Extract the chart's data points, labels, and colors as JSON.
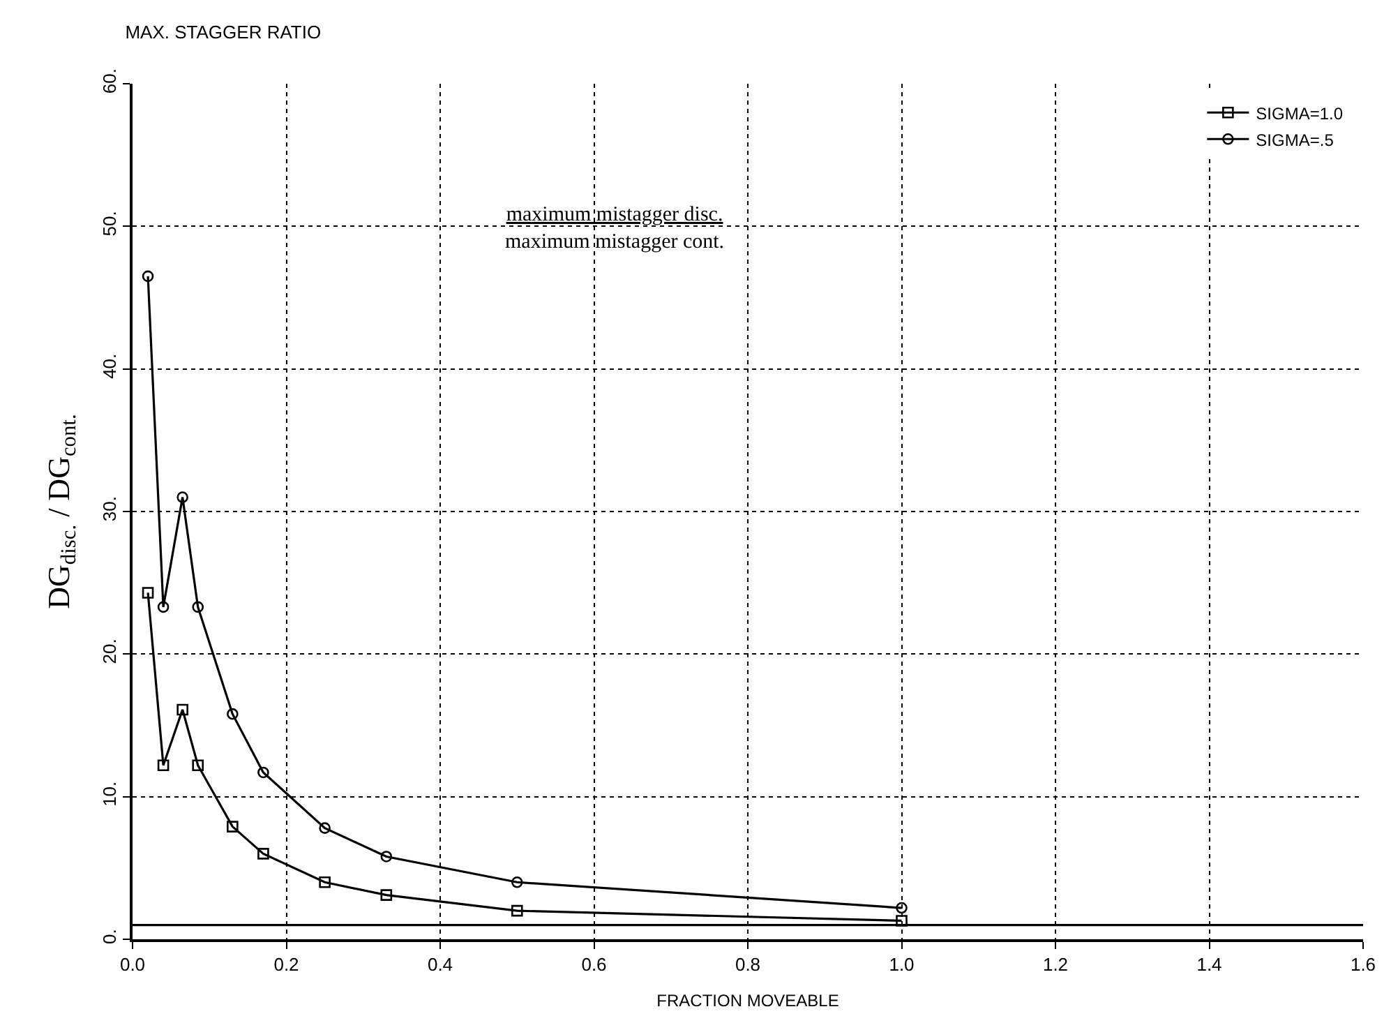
{
  "chart_data": {
    "type": "line",
    "title": "MAX. STAGGER RATIO",
    "xlabel": "FRACTION MOVEABLE",
    "ylabel": "DG$_{disc.}$ / DG$_{cont.}$",
    "annotations": [
      "maximum mistagger disc.\nmaximum mistagger cont."
    ],
    "series": [
      {
        "name": "SIGMA=1.0",
        "color": "#000000",
        "marker": "square",
        "x": [
          0.02,
          0.04,
          0.065,
          0.085,
          0.13,
          0.17,
          0.25,
          0.33,
          0.5,
          1.0
        ],
        "values": [
          24.3,
          12.2,
          16.1,
          12.2,
          7.9,
          6.0,
          4.0,
          3.1,
          2.0,
          1.3
        ]
      },
      {
        "name": "SIGMA=.5",
        "color": "#000000",
        "marker": "circle",
        "x": [
          0.02,
          0.04,
          0.065,
          0.085,
          0.13,
          0.17,
          0.25,
          0.33,
          0.5,
          1.0
        ],
        "values": [
          46.5,
          23.3,
          31.0,
          23.3,
          15.8,
          11.7,
          7.8,
          5.8,
          4.0,
          2.2
        ]
      }
    ],
    "ref_lines": [
      {
        "axis": "y",
        "value": 1,
        "color": "#000000",
        "line_style": "solid"
      }
    ],
    "xlim": [
      0,
      1.6
    ],
    "xticks": [
      {
        "value": 0,
        "label": "0.0"
      },
      {
        "value": 0.2,
        "label": "0.2"
      },
      {
        "value": 0.4,
        "label": "0.4"
      },
      {
        "value": 0.6,
        "label": "0.6"
      },
      {
        "value": 0.8,
        "label": "0.8"
      },
      {
        "value": 1.0,
        "label": "1.0"
      },
      {
        "value": 1.2,
        "label": "1.2"
      },
      {
        "value": 1.4,
        "label": "1.4"
      },
      {
        "value": 1.6,
        "label": "1.6"
      }
    ],
    "ylim": [
      0,
      60
    ],
    "yticks": [
      {
        "value": 0,
        "label": "0."
      },
      {
        "value": 10,
        "label": "10."
      },
      {
        "value": 20,
        "label": "20."
      },
      {
        "value": 30,
        "label": "30."
      },
      {
        "value": 40,
        "label": "40."
      },
      {
        "value": 50,
        "label": "50."
      },
      {
        "value": 60,
        "label": "60."
      }
    ],
    "grid": true,
    "legend": "top right",
    "line_style": "solid"
  }
}
